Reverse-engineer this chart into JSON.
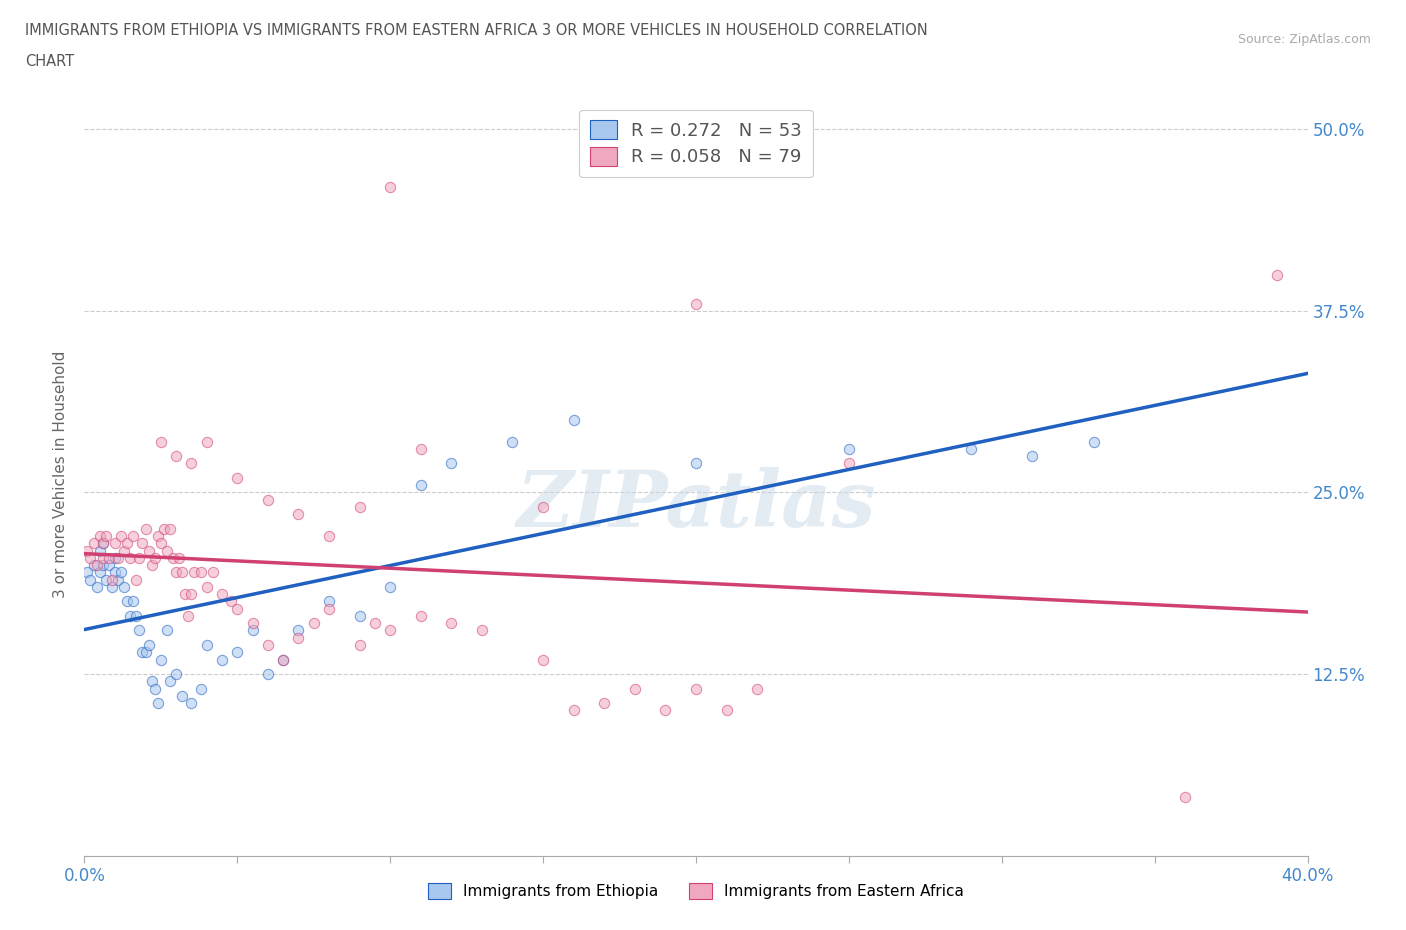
{
  "title_line1": "IMMIGRANTS FROM ETHIOPIA VS IMMIGRANTS FROM EASTERN AFRICA 3 OR MORE VEHICLES IN HOUSEHOLD CORRELATION",
  "title_line2": "CHART",
  "source": "Source: ZipAtlas.com",
  "ylabel": "3 or more Vehicles in Household",
  "xmin": 0.0,
  "xmax": 0.4,
  "ymin": 0.0,
  "ymax": 0.525,
  "yticks": [
    0.0,
    0.125,
    0.25,
    0.375,
    0.5
  ],
  "yticklabels": [
    "",
    "12.5%",
    "25.0%",
    "37.5%",
    "50.0%"
  ],
  "grid_color": "#cccccc",
  "background_color": "#ffffff",
  "series": [
    {
      "name": "Immigrants from Ethiopia",
      "R": 0.272,
      "N": 53,
      "color": "#a8c8f0",
      "trend_color": "#2060c0",
      "x": [
        0.001,
        0.002,
        0.003,
        0.004,
        0.005,
        0.005,
        0.006,
        0.006,
        0.007,
        0.008,
        0.009,
        0.01,
        0.01,
        0.011,
        0.012,
        0.013,
        0.014,
        0.015,
        0.016,
        0.017,
        0.018,
        0.019,
        0.02,
        0.021,
        0.022,
        0.023,
        0.024,
        0.025,
        0.027,
        0.028,
        0.03,
        0.032,
        0.035,
        0.038,
        0.04,
        0.045,
        0.05,
        0.055,
        0.06,
        0.065,
        0.07,
        0.08,
        0.09,
        0.1,
        0.11,
        0.12,
        0.14,
        0.16,
        0.2,
        0.25,
        0.29,
        0.31,
        0.33
      ],
      "y": [
        0.195,
        0.19,
        0.2,
        0.185,
        0.21,
        0.195,
        0.2,
        0.215,
        0.19,
        0.2,
        0.185,
        0.195,
        0.205,
        0.19,
        0.195,
        0.185,
        0.175,
        0.165,
        0.175,
        0.165,
        0.155,
        0.14,
        0.14,
        0.145,
        0.12,
        0.115,
        0.105,
        0.135,
        0.155,
        0.12,
        0.125,
        0.11,
        0.105,
        0.115,
        0.145,
        0.135,
        0.14,
        0.155,
        0.125,
        0.135,
        0.155,
        0.175,
        0.165,
        0.185,
        0.255,
        0.27,
        0.285,
        0.3,
        0.27,
        0.28,
        0.28,
        0.275,
        0.285
      ]
    },
    {
      "name": "Immigrants from Eastern Africa",
      "R": 0.058,
      "N": 79,
      "color": "#f0a8c0",
      "trend_color": "#d04070",
      "x": [
        0.001,
        0.002,
        0.003,
        0.004,
        0.005,
        0.006,
        0.006,
        0.007,
        0.008,
        0.009,
        0.01,
        0.011,
        0.012,
        0.013,
        0.014,
        0.015,
        0.016,
        0.017,
        0.018,
        0.019,
        0.02,
        0.021,
        0.022,
        0.023,
        0.024,
        0.025,
        0.026,
        0.027,
        0.028,
        0.029,
        0.03,
        0.031,
        0.032,
        0.033,
        0.034,
        0.035,
        0.036,
        0.038,
        0.04,
        0.042,
        0.045,
        0.048,
        0.05,
        0.055,
        0.06,
        0.065,
        0.07,
        0.075,
        0.08,
        0.09,
        0.095,
        0.1,
        0.11,
        0.12,
        0.13,
        0.15,
        0.16,
        0.17,
        0.18,
        0.19,
        0.2,
        0.21,
        0.22,
        0.025,
        0.03,
        0.035,
        0.04,
        0.05,
        0.06,
        0.07,
        0.08,
        0.09,
        0.1,
        0.11,
        0.15,
        0.2,
        0.25,
        0.36,
        0.39
      ],
      "y": [
        0.21,
        0.205,
        0.215,
        0.2,
        0.22,
        0.205,
        0.215,
        0.22,
        0.205,
        0.19,
        0.215,
        0.205,
        0.22,
        0.21,
        0.215,
        0.205,
        0.22,
        0.19,
        0.205,
        0.215,
        0.225,
        0.21,
        0.2,
        0.205,
        0.22,
        0.215,
        0.225,
        0.21,
        0.225,
        0.205,
        0.195,
        0.205,
        0.195,
        0.18,
        0.165,
        0.18,
        0.195,
        0.195,
        0.185,
        0.195,
        0.18,
        0.175,
        0.17,
        0.16,
        0.145,
        0.135,
        0.15,
        0.16,
        0.17,
        0.145,
        0.16,
        0.155,
        0.165,
        0.16,
        0.155,
        0.135,
        0.1,
        0.105,
        0.115,
        0.1,
        0.115,
        0.1,
        0.115,
        0.285,
        0.275,
        0.27,
        0.285,
        0.26,
        0.245,
        0.235,
        0.22,
        0.24,
        0.46,
        0.28,
        0.24,
        0.38,
        0.27,
        0.04,
        0.4
      ]
    }
  ],
  "watermark": "ZIPatlas",
  "scatter_size": 55,
  "scatter_alpha": 0.55,
  "trend_linewidth": 2.5
}
